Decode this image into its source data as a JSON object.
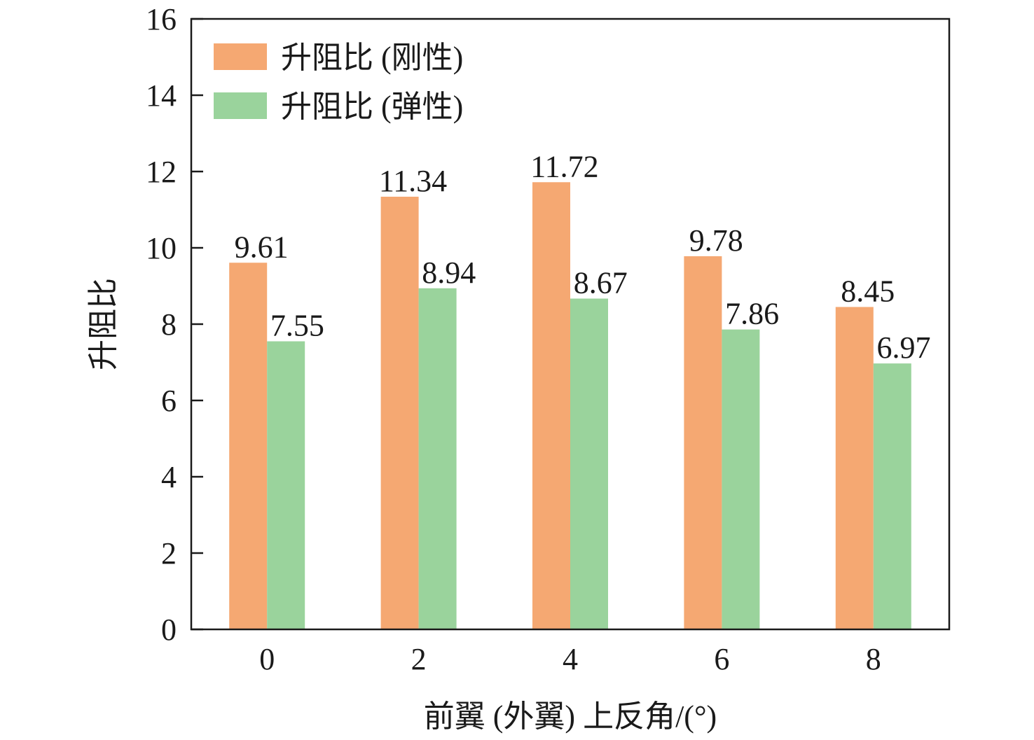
{
  "chart_data": {
    "type": "bar",
    "categories": [
      "0",
      "2",
      "4",
      "6",
      "8"
    ],
    "series": [
      {
        "name": "升阻比 (刚性)",
        "values": [
          9.61,
          11.34,
          11.72,
          9.78,
          8.45
        ],
        "color": "#F5A872"
      },
      {
        "name": "升阻比 (弹性)",
        "values": [
          7.55,
          8.94,
          8.67,
          7.86,
          6.97
        ],
        "color": "#9AD39C"
      }
    ],
    "data_labels": [
      [
        "9.61",
        "11.34",
        "11.72",
        "9.78",
        "8.45"
      ],
      [
        "7.55",
        "8.94",
        "8.67",
        "7.86",
        "6.97"
      ]
    ],
    "yticks": [
      "0",
      "2",
      "4",
      "6",
      "8",
      "10",
      "12",
      "14",
      "16"
    ],
    "ylim": [
      0,
      16
    ],
    "xlabel": "前翼 (外翼) 上反角/(°)",
    "ylabel": "升阻比",
    "legend_position": "top-left",
    "grid": false
  }
}
